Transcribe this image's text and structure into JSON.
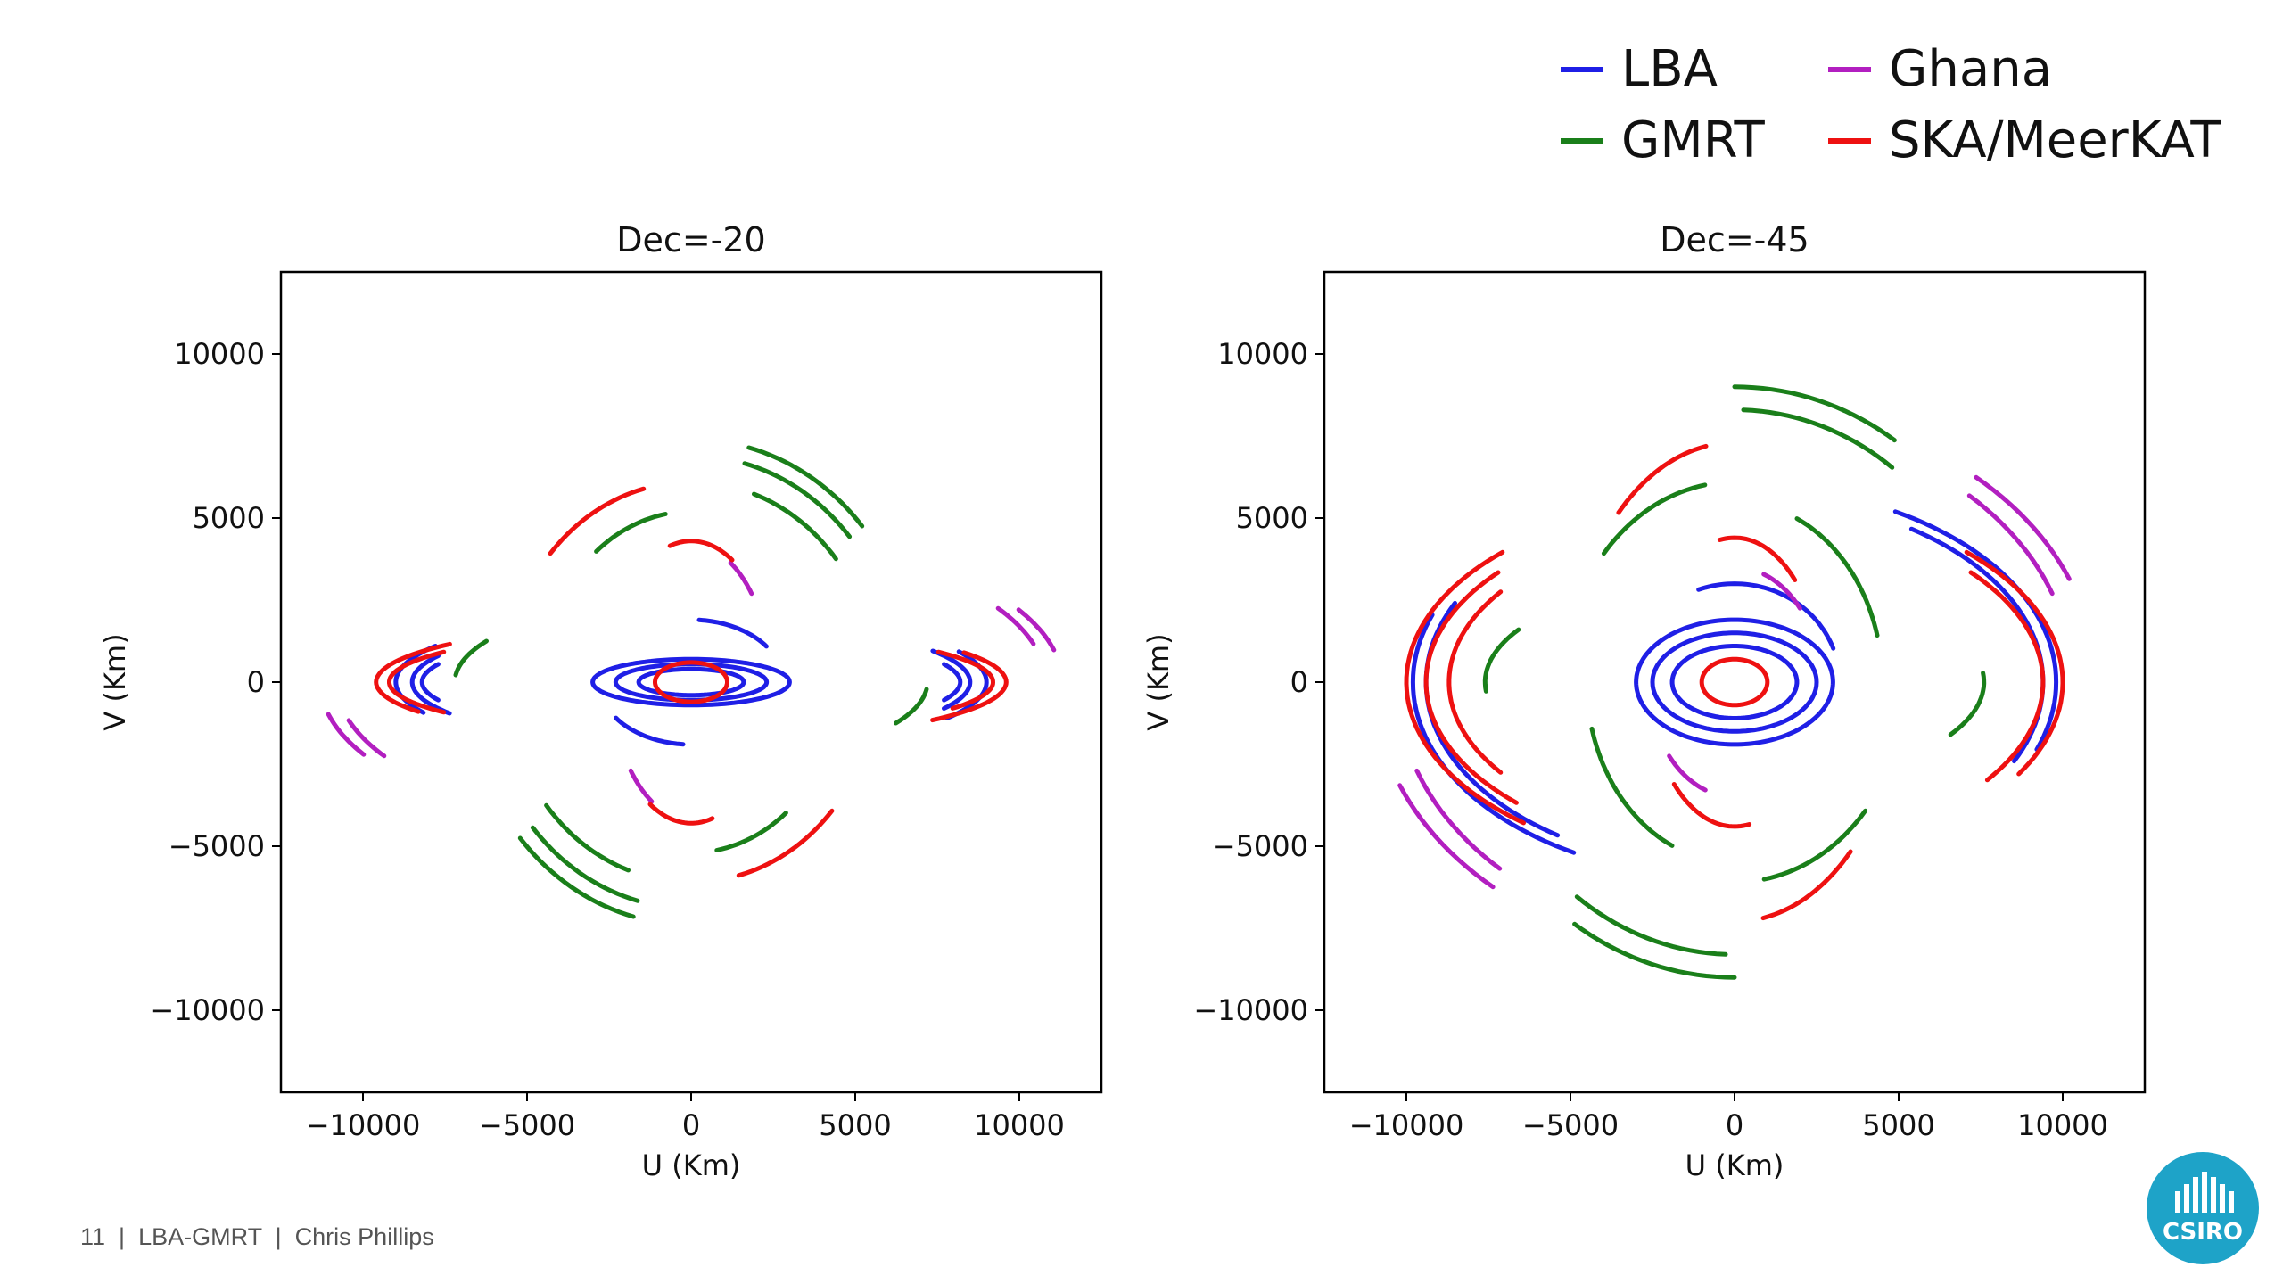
{
  "legend": {
    "items": [
      {
        "label": "LBA",
        "color": "#1f1fe6"
      },
      {
        "label": "GMRT",
        "color": "#1a7f1a"
      },
      {
        "label": "Ghana",
        "color": "#b21fc0"
      },
      {
        "label": "SKA/MeerKAT",
        "color": "#ee1111"
      }
    ]
  },
  "footer": {
    "page_number": "11",
    "title": "LBA-GMRT",
    "author": "Chris Phillips",
    "separator": "|"
  },
  "logo": {
    "text": "CSIRO",
    "color": "#1ea3c8"
  },
  "chart_data": [
    {
      "type": "scatter",
      "title": "Dec=-20",
      "xlabel": "U (Km)",
      "ylabel": "V (Km)",
      "xlim": [
        -12500,
        12500
      ],
      "ylim": [
        -12500,
        12500
      ],
      "xticks": [
        -10000,
        -5000,
        0,
        5000,
        10000
      ],
      "yticks": [
        -10000,
        -5000,
        0,
        5000,
        10000
      ],
      "xtick_labels": [
        "−10000",
        "−5000",
        "0",
        "5000",
        "10000"
      ],
      "ytick_labels": [
        "−10000",
        "−5000",
        "0",
        "5000",
        "10000"
      ],
      "grid": false,
      "series": [
        {
          "name": "LBA",
          "color": "#1f1fe6",
          "tracks": [
            {
              "rx": 3000,
              "ry": 700,
              "cx": 0,
              "cy": 0,
              "a0": 0,
              "a1": 360
            },
            {
              "rx": 2300,
              "ry": 550,
              "cx": 0,
              "cy": 0,
              "a0": 0,
              "a1": 360
            },
            {
              "rx": 1600,
              "ry": 400,
              "cx": 0,
              "cy": 0,
              "a0": 0,
              "a1": 360
            },
            {
              "rx": 2800,
              "ry": 1900,
              "cx": 0,
              "cy": 0,
              "a0": 35,
              "a1": 85
            },
            {
              "rx": 2800,
              "ry": 1900,
              "cx": 0,
              "cy": 0,
              "a0": 215,
              "a1": 265
            },
            {
              "rx": 9000,
              "ry": 2200,
              "cx": 0,
              "cy": 0,
              "a0": -30,
              "a1": 25
            },
            {
              "rx": 8500,
              "ry": 1900,
              "cx": 0,
              "cy": 0,
              "a0": -25,
              "a1": 30
            },
            {
              "rx": 8200,
              "ry": 1600,
              "cx": 0,
              "cy": 0,
              "a0": -20,
              "a1": 20
            },
            {
              "rx": 9000,
              "ry": 2200,
              "cx": 0,
              "cy": 0,
              "a0": 150,
              "a1": 205
            },
            {
              "rx": 8500,
              "ry": 1900,
              "cx": 0,
              "cy": 0,
              "a0": 155,
              "a1": 210
            },
            {
              "rx": 8200,
              "ry": 1600,
              "cx": 0,
              "cy": 0,
              "a0": 160,
              "a1": 200
            }
          ]
        },
        {
          "name": "GMRT",
          "color": "#1a7f1a",
          "tracks": [
            {
              "rx": 6800,
              "ry": 7400,
              "cx": 0,
              "cy": 0,
              "a0": 40,
              "a1": 75
            },
            {
              "rx": 6300,
              "ry": 6900,
              "cx": 0,
              "cy": 0,
              "a0": 40,
              "a1": 75
            },
            {
              "rx": 5600,
              "ry": 6100,
              "cx": 0,
              "cy": 0,
              "a0": 38,
              "a1": 70
            },
            {
              "rx": 6800,
              "ry": 7400,
              "cx": 0,
              "cy": 0,
              "a0": 220,
              "a1": 255
            },
            {
              "rx": 6300,
              "ry": 6900,
              "cx": 0,
              "cy": 0,
              "a0": 220,
              "a1": 255
            },
            {
              "rx": 5600,
              "ry": 6100,
              "cx": 0,
              "cy": 0,
              "a0": 218,
              "a1": 250
            },
            {
              "rx": 4500,
              "ry": 5200,
              "cx": 0,
              "cy": 0,
              "a0": 100,
              "a1": 130
            },
            {
              "rx": 4500,
              "ry": 5200,
              "cx": 0,
              "cy": 0,
              "a0": 280,
              "a1": 310
            },
            {
              "rx": 7200,
              "ry": 2500,
              "cx": 0,
              "cy": 0,
              "a0": 150,
              "a1": 175
            },
            {
              "rx": 7200,
              "ry": 2500,
              "cx": 0,
              "cy": 0,
              "a0": 330,
              "a1": 355
            }
          ]
        },
        {
          "name": "Ghana",
          "color": "#b21fc0",
          "tracks": [
            {
              "rx": 10800,
              "ry": 4500,
              "cx": 0,
              "cy": 0,
              "a0": 15,
              "a1": 30
            },
            {
              "rx": 11300,
              "ry": 4700,
              "cx": 0,
              "cy": 0,
              "a0": 12,
              "a1": 28
            },
            {
              "rx": 10800,
              "ry": 4500,
              "cx": 0,
              "cy": 0,
              "a0": 195,
              "a1": 210
            },
            {
              "rx": 11300,
              "ry": 4700,
              "cx": 0,
              "cy": 0,
              "a0": 192,
              "a1": 208
            },
            {
              "rx": 2400,
              "ry": 4200,
              "cx": 0,
              "cy": 0,
              "a0": 40,
              "a1": 60
            },
            {
              "rx": 2400,
              "ry": 4200,
              "cx": 0,
              "cy": 0,
              "a0": 220,
              "a1": 240
            }
          ]
        },
        {
          "name": "SKA/MeerKAT",
          "color": "#ee1111",
          "tracks": [
            {
              "rx": 9600,
              "ry": 1800,
              "cx": 0,
              "cy": 0,
              "a0": -40,
              "a1": 30
            },
            {
              "rx": 9200,
              "ry": 1600,
              "cx": 0,
              "cy": 0,
              "a0": -30,
              "a1": 35
            },
            {
              "rx": 9600,
              "ry": 1800,
              "cx": 0,
              "cy": 0,
              "a0": 140,
              "a1": 210
            },
            {
              "rx": 9200,
              "ry": 1600,
              "cx": 0,
              "cy": 0,
              "a0": 145,
              "a1": 215
            },
            {
              "rx": 5600,
              "ry": 6100,
              "cx": 0,
              "cy": 0,
              "a0": 105,
              "a1": 140
            },
            {
              "rx": 5600,
              "ry": 6100,
              "cx": 0,
              "cy": 0,
              "a0": 285,
              "a1": 320
            },
            {
              "rx": 2500,
              "ry": 4300,
              "cx": 0,
              "cy": 0,
              "a0": 60,
              "a1": 105
            },
            {
              "rx": 2500,
              "ry": 4300,
              "cx": 0,
              "cy": 0,
              "a0": 240,
              "a1": 285
            },
            {
              "rx": 1100,
              "ry": 600,
              "cx": 0,
              "cy": 0,
              "a0": 0,
              "a1": 360
            }
          ]
        }
      ]
    },
    {
      "type": "scatter",
      "title": "Dec=-45",
      "xlabel": "U (Km)",
      "ylabel": "V (Km)",
      "xlim": [
        -12500,
        12500
      ],
      "ylim": [
        -12500,
        12500
      ],
      "xticks": [
        -10000,
        -5000,
        0,
        5000,
        10000
      ],
      "yticks": [
        -10000,
        -5000,
        0,
        5000,
        10000
      ],
      "xtick_labels": [
        "−10000",
        "−5000",
        "0",
        "5000",
        "10000"
      ],
      "ytick_labels": [
        "−10000",
        "−5000",
        "0",
        "5000",
        "10000"
      ],
      "grid": false,
      "series": [
        {
          "name": "LBA",
          "color": "#1f1fe6",
          "tracks": [
            {
              "rx": 3000,
              "ry": 1900,
              "cx": 0,
              "cy": 0,
              "a0": 0,
              "a1": 360
            },
            {
              "rx": 2500,
              "ry": 1500,
              "cx": 0,
              "cy": 0,
              "a0": 0,
              "a1": 360
            },
            {
              "rx": 1900,
              "ry": 1100,
              "cx": 0,
              "cy": 0,
              "a0": 0,
              "a1": 360
            },
            {
              "rx": 3200,
              "ry": 3000,
              "cx": 0,
              "cy": 0,
              "a0": 20,
              "a1": 110
            },
            {
              "rx": 9800,
              "ry": 6000,
              "cx": 0,
              "cy": 0,
              "a0": -20,
              "a1": 60
            },
            {
              "rx": 9400,
              "ry": 5700,
              "cx": 0,
              "cy": 0,
              "a0": -25,
              "a1": 55
            },
            {
              "rx": 9800,
              "ry": 6000,
              "cx": 0,
              "cy": 0,
              "a0": 160,
              "a1": 240
            },
            {
              "rx": 9400,
              "ry": 5700,
              "cx": 0,
              "cy": 0,
              "a0": 155,
              "a1": 235
            }
          ]
        },
        {
          "name": "GMRT",
          "color": "#1a7f1a",
          "tracks": [
            {
              "rx": 8500,
              "ry": 9000,
              "cx": 0,
              "cy": 0,
              "a0": 55,
              "a1": 90
            },
            {
              "rx": 7800,
              "ry": 8300,
              "cx": 0,
              "cy": 0,
              "a0": 52,
              "a1": 88
            },
            {
              "rx": 8500,
              "ry": 9000,
              "cx": 0,
              "cy": 0,
              "a0": 235,
              "a1": 270
            },
            {
              "rx": 7800,
              "ry": 8300,
              "cx": 0,
              "cy": 0,
              "a0": 232,
              "a1": 268
            },
            {
              "rx": 5200,
              "ry": 6100,
              "cx": 0,
              "cy": 0,
              "a0": 100,
              "a1": 140
            },
            {
              "rx": 5200,
              "ry": 6100,
              "cx": 0,
              "cy": 0,
              "a0": 280,
              "a1": 320
            },
            {
              "rx": 4500,
              "ry": 5500,
              "cx": 0,
              "cy": 0,
              "a0": 15,
              "a1": 65
            },
            {
              "rx": 4500,
              "ry": 5500,
              "cx": 0,
              "cy": 0,
              "a0": 195,
              "a1": 245
            },
            {
              "rx": 7600,
              "ry": 3200,
              "cx": 0,
              "cy": 0,
              "a0": 150,
              "a1": 185
            },
            {
              "rx": 7600,
              "ry": 3200,
              "cx": 0,
              "cy": 0,
              "a0": 330,
              "a1": 5
            }
          ]
        },
        {
          "name": "Ghana",
          "color": "#b21fc0",
          "tracks": [
            {
              "rx": 11000,
              "ry": 8400,
              "cx": 0,
              "cy": 0,
              "a0": 22,
              "a1": 48
            },
            {
              "rx": 10300,
              "ry": 7900,
              "cx": 0,
              "cy": 0,
              "a0": 20,
              "a1": 46
            },
            {
              "rx": 11000,
              "ry": 8400,
              "cx": 0,
              "cy": 0,
              "a0": 202,
              "a1": 228
            },
            {
              "rx": 10300,
              "ry": 7900,
              "cx": 0,
              "cy": 0,
              "a0": 200,
              "a1": 226
            },
            {
              "rx": 2600,
              "ry": 3500,
              "cx": 0,
              "cy": 0,
              "a0": 40,
              "a1": 70
            },
            {
              "rx": 2600,
              "ry": 3500,
              "cx": 0,
              "cy": 0,
              "a0": 220,
              "a1": 250
            }
          ]
        },
        {
          "name": "SKA/MeerKAT",
          "color": "#ee1111",
          "tracks": [
            {
              "rx": 10000,
              "ry": 5600,
              "cx": 0,
              "cy": 0,
              "a0": -30,
              "a1": 45
            },
            {
              "rx": 9400,
              "ry": 5200,
              "cx": 0,
              "cy": 0,
              "a0": -35,
              "a1": 40
            },
            {
              "rx": 10000,
              "ry": 5600,
              "cx": 0,
              "cy": 0,
              "a0": 135,
              "a1": 230
            },
            {
              "rx": 9400,
              "ry": 5200,
              "cx": 0,
              "cy": 0,
              "a0": 140,
              "a1": 225
            },
            {
              "rx": 8700,
              "ry": 4800,
              "cx": 0,
              "cy": 0,
              "a0": 145,
              "a1": 215
            },
            {
              "rx": 5000,
              "ry": 7300,
              "cx": 0,
              "cy": 0,
              "a0": 100,
              "a1": 135
            },
            {
              "rx": 5000,
              "ry": 7300,
              "cx": 0,
              "cy": 0,
              "a0": 280,
              "a1": 315
            },
            {
              "rx": 2600,
              "ry": 4400,
              "cx": 0,
              "cy": 0,
              "a0": 45,
              "a1": 100
            },
            {
              "rx": 2600,
              "ry": 4400,
              "cx": 0,
              "cy": 0,
              "a0": 225,
              "a1": 280
            },
            {
              "rx": 1000,
              "ry": 700,
              "cx": 0,
              "cy": 0,
              "a0": 0,
              "a1": 360
            }
          ]
        }
      ]
    }
  ]
}
